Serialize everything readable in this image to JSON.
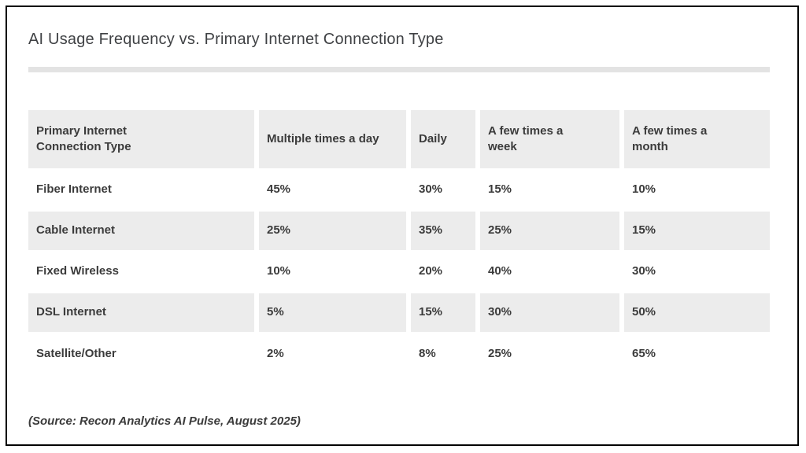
{
  "page": {
    "title": "AI Usage Frequency vs. Primary Internet Connection Type",
    "source_note": "(Source: Recon Analytics AI Pulse, August 2025)"
  },
  "table": {
    "columns": [
      "Primary Internet Connection Type",
      "Multiple times a day",
      "Daily",
      "A few times a week",
      "A few times a month"
    ],
    "rows": [
      {
        "label": "Fiber Internet",
        "values": [
          "45%",
          "30%",
          "15%",
          "10%"
        ]
      },
      {
        "label": "Cable Internet",
        "values": [
          "25%",
          "35%",
          "25%",
          "15%"
        ]
      },
      {
        "label": "Fixed Wireless",
        "values": [
          "10%",
          "20%",
          "40%",
          "30%"
        ]
      },
      {
        "label": "DSL Internet",
        "values": [
          "5%",
          "15%",
          "30%",
          "50%"
        ]
      },
      {
        "label": "Satellite/Other",
        "values": [
          "2%",
          "8%",
          "25%",
          "65%"
        ]
      }
    ]
  },
  "chart_data": {
    "type": "table",
    "title": "AI Usage Frequency vs. Primary Internet Connection Type",
    "categories": [
      "Multiple times a day",
      "Daily",
      "A few times a week",
      "A few times a month"
    ],
    "series": [
      {
        "name": "Fiber Internet",
        "values": [
          45,
          30,
          15,
          10
        ]
      },
      {
        "name": "Cable Internet",
        "values": [
          25,
          35,
          25,
          15
        ]
      },
      {
        "name": "Fixed Wireless",
        "values": [
          10,
          20,
          40,
          30
        ]
      },
      {
        "name": "DSL Internet",
        "values": [
          5,
          15,
          30,
          50
        ]
      },
      {
        "name": "Satellite/Other",
        "values": [
          2,
          8,
          25,
          65
        ]
      }
    ],
    "unit": "%",
    "row_axis_label": "Primary Internet Connection Type",
    "source": "(Source: Recon Analytics AI Pulse, August 2025)"
  },
  "colors": {
    "row_alt_bg": "#ececec",
    "text": "#3b3b3b",
    "title": "#3f4144",
    "divider": "#e3e3e3",
    "frame_border": "#000000"
  }
}
